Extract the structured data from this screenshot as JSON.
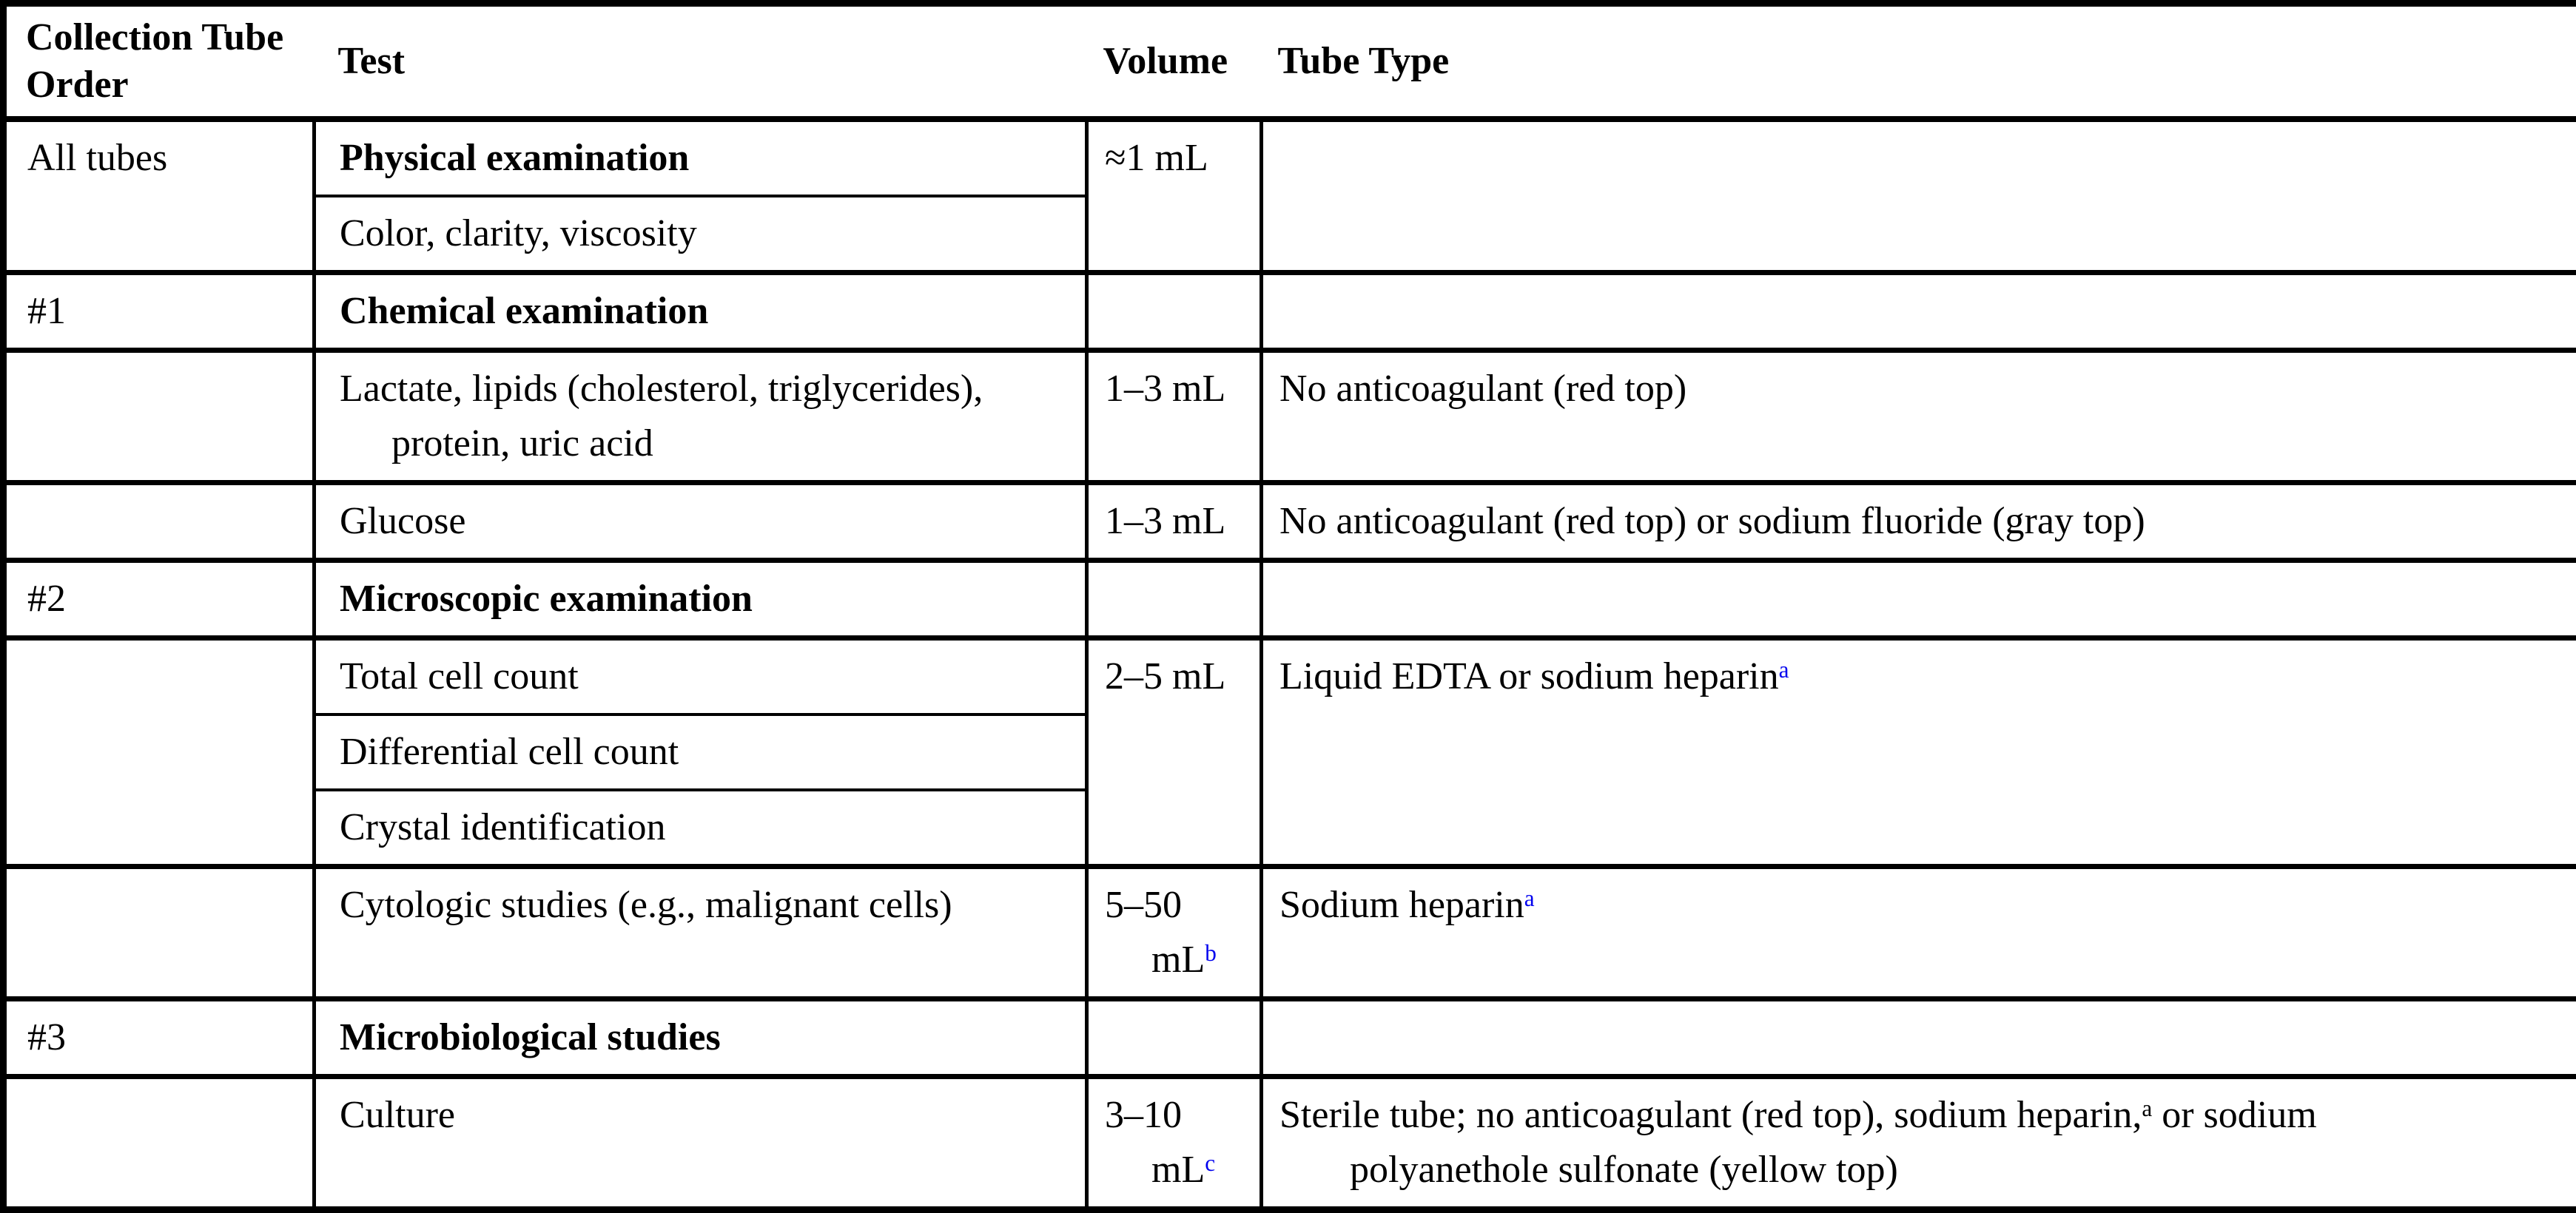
{
  "colors": {
    "background": "#ffffff",
    "text": "#000000",
    "border": "#000000",
    "superscript_blue": "#0000ee"
  },
  "header": {
    "collection_tube_order": "Collection Tube Order",
    "test": "Test",
    "volume": "Volume",
    "tube_type": "Tube Type"
  },
  "cells": {
    "all_tubes": [
      {
        "t": "All tubes"
      }
    ],
    "physical_examination": [
      {
        "t": "Physical examination"
      }
    ],
    "approx_1_ml": [
      {
        "t": "≈1 mL"
      }
    ],
    "color_clarity_viscosity": [
      {
        "t": "Color, clarity, viscosity"
      }
    ],
    "tube_1": [
      {
        "t": "#1"
      }
    ],
    "chemical_examination": [
      {
        "t": "Chemical examination"
      }
    ],
    "lactate_lipids": [
      {
        "t": "Lactate, lipids (cholesterol, triglycerides),"
      },
      {
        "br": true
      },
      {
        "t": "protein, uric acid"
      }
    ],
    "vol_1_3_ml_a": [
      {
        "t": "1–3 mL"
      }
    ],
    "no_anticoagulant_red_top": [
      {
        "t": "No anticoagulant (red top)"
      }
    ],
    "glucose": [
      {
        "t": "Glucose"
      }
    ],
    "vol_1_3_ml_b": [
      {
        "t": "1–3 mL"
      }
    ],
    "no_anticoagulant_or_fluoride": [
      {
        "t": "No anticoagulant (red top) or sodium fluoride (gray top)"
      }
    ],
    "tube_2": [
      {
        "t": "#2"
      }
    ],
    "microscopic_examination": [
      {
        "t": "Microscopic examination"
      }
    ],
    "total_cell_count": [
      {
        "t": "Total cell count"
      }
    ],
    "vol_2_5_ml": [
      {
        "t": "2–5 mL"
      }
    ],
    "liquid_edta_or_heparin": [
      {
        "t": "Liquid EDTA or sodium heparin"
      },
      {
        "sup": "a",
        "blue": true
      }
    ],
    "differential_cell_count": [
      {
        "t": "Differential cell count"
      }
    ],
    "crystal_identification": [
      {
        "t": "Crystal identification"
      }
    ],
    "cytologic_studies": [
      {
        "t": "Cytologic studies (e.g., malignant cells)"
      }
    ],
    "vol_5_50_ml": [
      {
        "t": "5–50"
      },
      {
        "br": true
      },
      {
        "t": "mL"
      },
      {
        "sup": "b",
        "blue": true
      }
    ],
    "sodium_heparin": [
      {
        "t": "Sodium heparin"
      },
      {
        "sup": "a",
        "blue": true
      }
    ],
    "tube_3": [
      {
        "t": "#3"
      }
    ],
    "microbiological_studies": [
      {
        "t": "Microbiological studies"
      }
    ],
    "culture": [
      {
        "t": "Culture"
      }
    ],
    "vol_3_10_ml": [
      {
        "t": "3–10"
      },
      {
        "br": true
      },
      {
        "t": "mL"
      },
      {
        "sup": "c",
        "blue": true
      }
    ],
    "sterile_tube": [
      {
        "t": "Sterile tube; no anticoagulant (red top), sodium heparin,"
      },
      {
        "sup": "a",
        "blue": false
      },
      {
        "t": " or sodium"
      },
      {
        "br": true
      },
      {
        "t": "polyanethole sulfonate (yellow top)"
      }
    ]
  }
}
